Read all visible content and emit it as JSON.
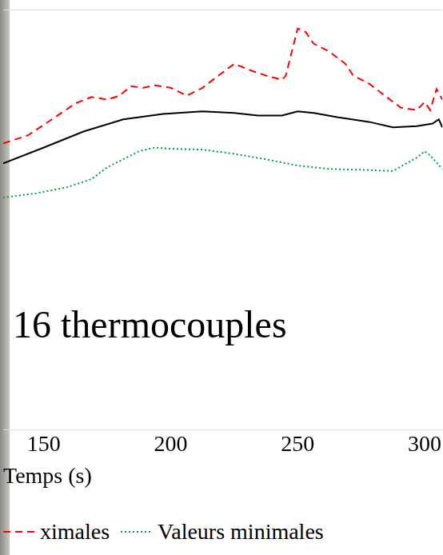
{
  "chart_data": {
    "type": "line",
    "x_label": "Temps (s)",
    "annotation": "16 thermocouples",
    "xlim": [
      134,
      307
    ],
    "xticks": [
      150,
      200,
      250,
      300
    ],
    "ylim": [
      0,
      100
    ],
    "tick_labels": "x",
    "grid": false,
    "legend": "bottom",
    "series": [
      {
        "name": "ximales",
        "color": "#ff0000",
        "line_style": "dashed",
        "x": [
          134,
          143.8,
          153.2,
          162.5,
          168.8,
          175,
          179.7,
          184.4,
          189.1,
          193.8,
          200,
          206.3,
          212.5,
          218.8,
          225,
          231.3,
          237.5,
          243.8,
          245.3,
          250,
          253.1,
          256.3,
          262.5,
          268.8,
          271.9,
          278.1,
          284.4,
          290.6,
          296.9,
          300,
          302.2,
          304.7,
          307
        ],
        "values": [
          68.2,
          70.1,
          73.9,
          77.7,
          79.2,
          78.6,
          79.5,
          81.8,
          81.4,
          82.0,
          81.4,
          79.5,
          81.4,
          84.3,
          87.1,
          85.6,
          84.3,
          83.3,
          84.3,
          95.5,
          94.7,
          91.9,
          90.0,
          87.1,
          84.3,
          82.4,
          79.5,
          76.7,
          76.1,
          78.0,
          76.1,
          81.1,
          78.6
        ]
      },
      {
        "color": "#000000",
        "line_style": "solid",
        "x": [
          134,
          150,
          165.6,
          181.3,
          196.9,
          212.5,
          225,
          234.4,
          243.8,
          250,
          256.3,
          265.6,
          278.1,
          287.5,
          296.9,
          303.1,
          305.6,
          307
        ],
        "values": [
          63.4,
          67.2,
          71.0,
          73.9,
          75.2,
          75.8,
          75.4,
          74.8,
          74.8,
          75.8,
          75.4,
          74.4,
          73.3,
          72.0,
          72.3,
          72.9,
          73.9,
          72.0
        ]
      },
      {
        "name": "Valeurs minimales",
        "color": "#00a040",
        "line_style": "dotted",
        "x": [
          134,
          146.9,
          159.4,
          168.8,
          175,
          181.3,
          187.5,
          193.8,
          200,
          212.5,
          225,
          237.5,
          250,
          262.5,
          275,
          287.5,
          296.9,
          300,
          302.2,
          307
        ],
        "values": [
          55.3,
          56.3,
          57.8,
          59.7,
          62.5,
          64.4,
          66.3,
          67.2,
          66.9,
          66.7,
          65.7,
          64.4,
          62.9,
          62.1,
          61.9,
          61.6,
          64.8,
          66.3,
          65.3,
          62.1
        ]
      }
    ]
  }
}
